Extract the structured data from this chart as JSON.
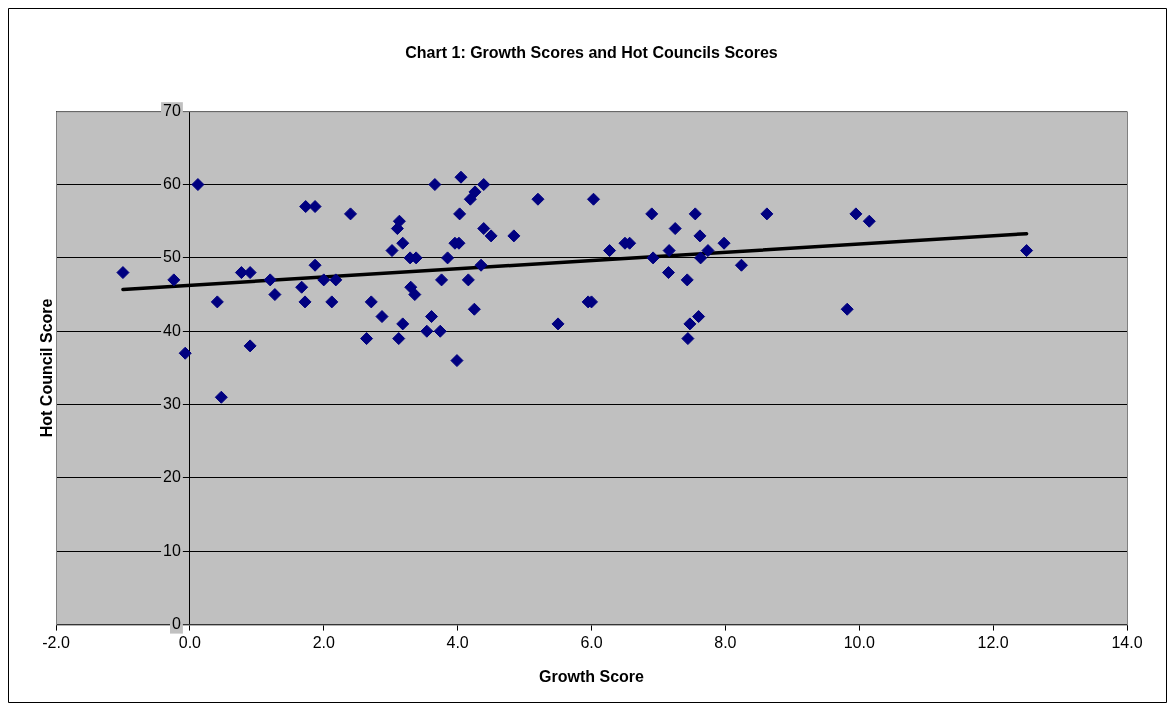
{
  "chart_data": {
    "type": "scatter",
    "title": "Chart 1: Growth Scores and Hot Councils Scores",
    "xlabel": "Growth Score",
    "ylabel": "Hot Council Score",
    "xlim": [
      -2,
      14
    ],
    "xticks": [
      {
        "value": -2,
        "label": "-2.0"
      },
      {
        "value": 0,
        "label": "0.0"
      },
      {
        "value": 2,
        "label": "2.0"
      },
      {
        "value": 4,
        "label": "4.0"
      },
      {
        "value": 6,
        "label": "6.0"
      },
      {
        "value": 8,
        "label": "8.0"
      },
      {
        "value": 10,
        "label": "10.0"
      },
      {
        "value": 12,
        "label": "12.0"
      },
      {
        "value": 14,
        "label": "14.0"
      }
    ],
    "ylim": [
      0,
      70
    ],
    "yticks": [
      0,
      10,
      20,
      30,
      40,
      50,
      60,
      70
    ],
    "grid": "y",
    "marker": "diamond",
    "series": [
      {
        "color": "#000080",
        "x": [
          -1.0,
          -0.24,
          -0.07,
          0.12,
          0.41,
          0.47,
          0.9,
          0.77,
          0.9,
          1.2,
          1.27,
          1.67,
          1.73,
          1.72,
          1.87,
          1.87,
          2.0,
          2.12,
          2.18,
          2.4,
          2.64,
          2.71,
          2.87,
          3.02,
          3.1,
          3.12,
          3.13,
          3.18,
          3.18,
          3.29,
          3.3,
          3.36,
          3.38,
          3.54,
          3.61,
          3.66,
          3.74,
          3.76,
          3.85,
          3.96,
          3.99,
          4.02,
          4.03,
          4.05,
          4.16,
          4.19,
          4.26,
          4.25,
          4.35,
          4.39,
          4.39,
          4.5,
          4.84,
          5.2,
          5.5,
          5.95,
          6.0,
          6.03,
          6.27,
          6.5,
          6.57,
          6.9,
          6.92,
          7.15,
          7.16,
          7.25,
          7.43,
          7.44,
          7.47,
          7.55,
          7.6,
          7.62,
          7.63,
          7.74,
          7.98,
          8.24,
          8.62,
          9.82,
          9.95,
          10.15,
          12.5
        ],
        "values": [
          48,
          47,
          37,
          60,
          44,
          31,
          38,
          48,
          48,
          47,
          45,
          46,
          57,
          44,
          57,
          49,
          47,
          44,
          47,
          56,
          39,
          44,
          42,
          51,
          54,
          39,
          55,
          52,
          41,
          50,
          46,
          45,
          50,
          40,
          42,
          60,
          40,
          47,
          50,
          52,
          36,
          52,
          56,
          61,
          47,
          58,
          59,
          43,
          49,
          60,
          54,
          53,
          53,
          58,
          41,
          44,
          44,
          58,
          51,
          52,
          52,
          56,
          50,
          48,
          51,
          54,
          47,
          39,
          41,
          56,
          42,
          53,
          50,
          51,
          52,
          49,
          56,
          43,
          56,
          55,
          51
        ]
      },
      {
        "type": "line",
        "marker": "none",
        "color": "#000000",
        "x": [
          -1.0,
          12.5
        ],
        "values": [
          45.7,
          53.3
        ]
      }
    ]
  }
}
